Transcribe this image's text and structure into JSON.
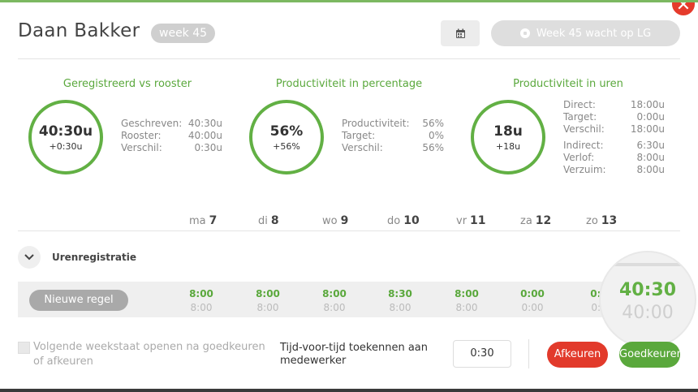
{
  "header": {
    "name": "Daan Bakker",
    "week_badge": "week 45",
    "status_button": "Week 45 wacht op LG"
  },
  "stats": [
    {
      "title": "Geregistreerd vs rooster",
      "ring_main": "40:30u",
      "ring_sub": "+0:30u",
      "rows": [
        {
          "label": "Geschreven:",
          "value": "40:30u"
        },
        {
          "label": "Rooster:",
          "value": "40:00u"
        },
        {
          "label": "Verschil:",
          "value": "0:30u"
        }
      ]
    },
    {
      "title": "Productiviteit in percentage",
      "ring_main": "56%",
      "ring_sub": "+56%",
      "rows": [
        {
          "label": "Productiviteit:",
          "value": "56%"
        },
        {
          "label": "Target:",
          "value": "0%"
        },
        {
          "label": "Verschil:",
          "value": "56%"
        }
      ]
    },
    {
      "title": "Productiviteit in uren",
      "ring_main": "18u",
      "ring_sub": "+18u",
      "rows": [
        {
          "label": "Direct:",
          "value": "18:00u"
        },
        {
          "label": "Target:",
          "value": "0:00u"
        },
        {
          "label": "Verschil:",
          "value": "18:00u"
        },
        {
          "label": "Indirect:",
          "value": "6:30u"
        },
        {
          "label": "Verlof:",
          "value": "8:00u"
        },
        {
          "label": "Verzuim:",
          "value": "8:00u"
        }
      ]
    }
  ],
  "days": [
    {
      "dow": "ma",
      "num": "7",
      "hours": "8:00",
      "planned": "8:00"
    },
    {
      "dow": "di",
      "num": "8",
      "hours": "8:00",
      "planned": "8:00"
    },
    {
      "dow": "wo",
      "num": "9",
      "hours": "8:00",
      "planned": "8:00"
    },
    {
      "dow": "do",
      "num": "10",
      "hours": "8:30",
      "planned": "8:00"
    },
    {
      "dow": "vr",
      "num": "11",
      "hours": "8:00",
      "planned": "8:00"
    },
    {
      "dow": "za",
      "num": "12",
      "hours": "0:00",
      "planned": "0:00"
    },
    {
      "dow": "zo",
      "num": "13",
      "hours": "0:0",
      "planned": "0:0"
    }
  ],
  "section": {
    "label": "Urenregistratie",
    "new_row_button": "Nieuwe regel"
  },
  "totals": {
    "hours": "40:30",
    "planned": "40:00"
  },
  "footer": {
    "checkbox_label": "Volgende weekstaat openen na goedkeuren of afkeuren",
    "tvt_label": "Tijd-voor-tijd toekennen aan medewerker",
    "tvt_value": "0:30",
    "reject_button": "Afkeuren",
    "approve_button": "Goedkeuren"
  },
  "colors": {
    "accent": "#5aa83c",
    "danger": "#e23a2b"
  }
}
